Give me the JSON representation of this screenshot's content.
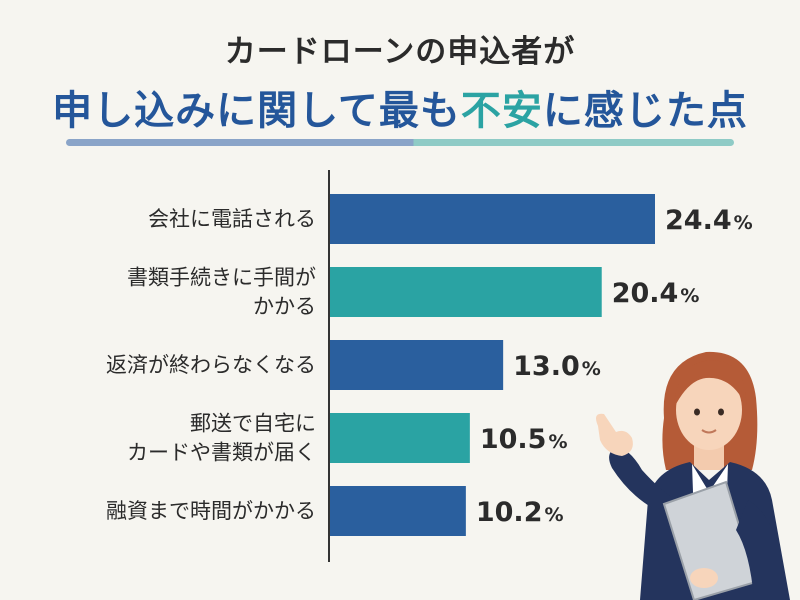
{
  "title": {
    "line1": "カードローンの申込者が",
    "line2_parts": [
      {
        "text": "申し込みに関して最も",
        "highlight": false
      },
      {
        "text": "不安",
        "highlight": true
      },
      {
        "text": "に感じた点",
        "highlight": false
      }
    ]
  },
  "colors": {
    "blue": "#2a5f9e",
    "teal": "#2aa3a3",
    "title_blue": "#24569a",
    "axis": "#333333",
    "background": "#f6f5f0"
  },
  "chart_data": {
    "type": "bar",
    "orientation": "horizontal",
    "unit": "%",
    "categories": [
      [
        "会社に電話される"
      ],
      [
        "書類手続きに手間が",
        "かかる"
      ],
      [
        "返済が終わらなくなる"
      ],
      [
        "郵送で自宅に",
        "カードや書類が届く"
      ],
      [
        "融資まで時間がかかる"
      ]
    ],
    "values": [
      24.4,
      20.4,
      13.0,
      10.5,
      10.2
    ],
    "value_labels": [
      "24.4",
      "20.4",
      "13.0",
      "10.5",
      "10.2"
    ],
    "bar_colors": [
      "#2a5f9e",
      "#2aa3a3",
      "#2a5f9e",
      "#2aa3a3",
      "#2a5f9e"
    ],
    "xlim": [
      0,
      30
    ],
    "grid": false,
    "legend": "none"
  },
  "illustration": {
    "figure": "woman-presenting-illustration"
  }
}
